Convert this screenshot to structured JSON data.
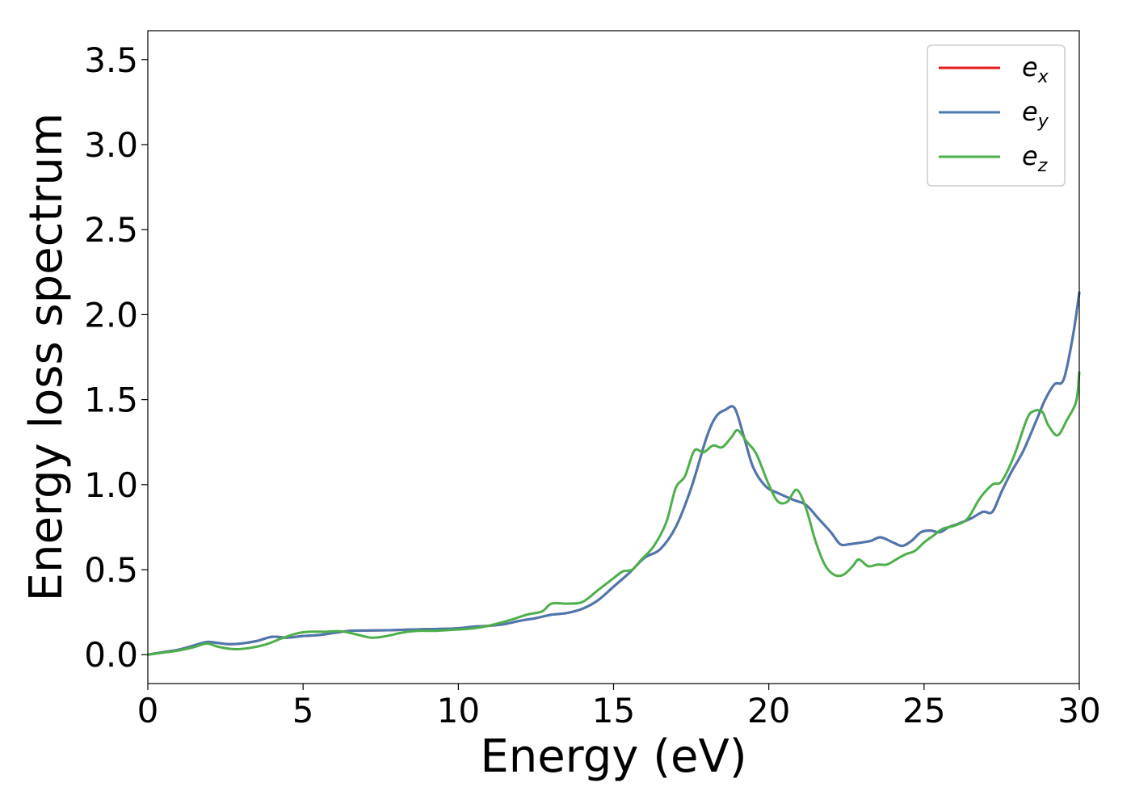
{
  "chart_data": {
    "type": "line",
    "title": "",
    "xlabel": "Energy (eV)",
    "ylabel": "Energy loss spectrum",
    "xlim": [
      0,
      30
    ],
    "ylim": [
      -0.17,
      3.67
    ],
    "xticks": [
      0,
      5,
      10,
      15,
      20,
      25,
      30
    ],
    "xtick_labels": [
      "0",
      "5",
      "10",
      "15",
      "20",
      "25",
      "30"
    ],
    "yticks": [
      0.0,
      0.5,
      1.0,
      1.5,
      2.0,
      2.5,
      3.0,
      3.5
    ],
    "ytick_labels": [
      "0.0",
      "0.5",
      "1.0",
      "1.5",
      "2.0",
      "2.5",
      "3.0",
      "3.5"
    ],
    "grid": false,
    "legend": {
      "placement": "top-right"
    },
    "series": [
      {
        "name": "e_x",
        "label_base": "e",
        "label_sub": "x",
        "color": "#e41a1c",
        "x": [
          0,
          0.5,
          1,
          1.5,
          1.9,
          2.2,
          2.6,
          3,
          3.5,
          4,
          4.5,
          5,
          5.5,
          6,
          6.5,
          7,
          7.5,
          8,
          8.5,
          9,
          9.5,
          10,
          10.5,
          11,
          11.5,
          12,
          12.5,
          13,
          13.5,
          14,
          14.5,
          15,
          15.5,
          16,
          16.5,
          17,
          17.5,
          18,
          18.3,
          18.6,
          18.9,
          19.2,
          19.5,
          19.9,
          20.3,
          20.8,
          21.2,
          21.6,
          22,
          22.3,
          22.6,
          23,
          23.3,
          23.6,
          24,
          24.3,
          24.6,
          24.9,
          25.2,
          25.5,
          25.8,
          26.1,
          26.5,
          26.9,
          27.2,
          27.5,
          27.8,
          28.2,
          28.6,
          28.9,
          29.2,
          29.5,
          29.8,
          30
        ],
        "y": [
          0.0,
          0.015,
          0.03,
          0.055,
          0.075,
          0.07,
          0.062,
          0.065,
          0.08,
          0.105,
          0.1,
          0.11,
          0.115,
          0.128,
          0.14,
          0.142,
          0.143,
          0.145,
          0.148,
          0.15,
          0.152,
          0.155,
          0.165,
          0.17,
          0.18,
          0.2,
          0.215,
          0.235,
          0.245,
          0.27,
          0.32,
          0.4,
          0.48,
          0.57,
          0.62,
          0.75,
          0.98,
          1.28,
          1.4,
          1.44,
          1.45,
          1.28,
          1.1,
          0.99,
          0.95,
          0.91,
          0.88,
          0.8,
          0.72,
          0.65,
          0.65,
          0.66,
          0.67,
          0.69,
          0.66,
          0.64,
          0.67,
          0.72,
          0.73,
          0.72,
          0.75,
          0.77,
          0.8,
          0.84,
          0.84,
          0.96,
          1.07,
          1.2,
          1.37,
          1.5,
          1.59,
          1.62,
          1.88,
          2.13
        ]
      },
      {
        "name": "e_y",
        "label_base": "e",
        "label_sub": "y",
        "color": "#4a78b0",
        "x": [
          0,
          0.5,
          1,
          1.5,
          1.9,
          2.2,
          2.6,
          3,
          3.5,
          4,
          4.5,
          5,
          5.5,
          6,
          6.5,
          7,
          7.5,
          8,
          8.5,
          9,
          9.5,
          10,
          10.5,
          11,
          11.5,
          12,
          12.5,
          13,
          13.5,
          14,
          14.5,
          15,
          15.5,
          16,
          16.5,
          17,
          17.5,
          18,
          18.3,
          18.6,
          18.9,
          19.2,
          19.5,
          19.9,
          20.3,
          20.8,
          21.2,
          21.6,
          22,
          22.3,
          22.6,
          23,
          23.3,
          23.6,
          24,
          24.3,
          24.6,
          24.9,
          25.2,
          25.5,
          25.8,
          26.1,
          26.5,
          26.9,
          27.2,
          27.5,
          27.8,
          28.2,
          28.6,
          28.9,
          29.2,
          29.5,
          29.8,
          30
        ],
        "y": [
          0.0,
          0.015,
          0.03,
          0.055,
          0.075,
          0.07,
          0.062,
          0.065,
          0.08,
          0.105,
          0.1,
          0.11,
          0.115,
          0.128,
          0.14,
          0.142,
          0.143,
          0.145,
          0.148,
          0.15,
          0.152,
          0.155,
          0.165,
          0.17,
          0.18,
          0.2,
          0.215,
          0.235,
          0.245,
          0.27,
          0.32,
          0.4,
          0.48,
          0.57,
          0.62,
          0.75,
          0.98,
          1.28,
          1.4,
          1.44,
          1.45,
          1.28,
          1.1,
          0.99,
          0.95,
          0.91,
          0.88,
          0.8,
          0.72,
          0.65,
          0.65,
          0.66,
          0.67,
          0.69,
          0.66,
          0.64,
          0.67,
          0.72,
          0.73,
          0.72,
          0.75,
          0.77,
          0.8,
          0.84,
          0.84,
          0.96,
          1.07,
          1.2,
          1.37,
          1.5,
          1.59,
          1.62,
          1.88,
          2.13
        ]
      },
      {
        "name": "e_z",
        "label_base": "e",
        "label_sub": "z",
        "color": "#4daf4a",
        "x": [
          0,
          0.5,
          1,
          1.5,
          1.9,
          2.3,
          2.8,
          3.3,
          3.8,
          4.3,
          4.8,
          5.2,
          5.7,
          6.2,
          6.7,
          7.2,
          7.7,
          8.2,
          8.7,
          9.2,
          9.7,
          10.2,
          10.7,
          11.2,
          11.7,
          12.2,
          12.7,
          13,
          13.5,
          14,
          14.5,
          15,
          15.3,
          15.6,
          15.9,
          16.3,
          16.7,
          17,
          17.3,
          17.6,
          17.9,
          18.2,
          18.5,
          18.8,
          19,
          19.3,
          19.6,
          20,
          20.3,
          20.6,
          20.9,
          21.2,
          21.5,
          21.8,
          22.1,
          22.4,
          22.7,
          22.9,
          23.2,
          23.5,
          23.8,
          24.1,
          24.4,
          24.7,
          25,
          25.3,
          25.6,
          26,
          26.4,
          26.8,
          27.2,
          27.5,
          27.9,
          28.3,
          28.5,
          28.8,
          29,
          29.3,
          29.6,
          29.9,
          30
        ],
        "y": [
          0.0,
          0.012,
          0.025,
          0.045,
          0.065,
          0.045,
          0.032,
          0.04,
          0.06,
          0.095,
          0.125,
          0.135,
          0.135,
          0.138,
          0.12,
          0.1,
          0.11,
          0.13,
          0.14,
          0.14,
          0.145,
          0.15,
          0.16,
          0.18,
          0.205,
          0.235,
          0.255,
          0.3,
          0.3,
          0.31,
          0.38,
          0.45,
          0.49,
          0.5,
          0.56,
          0.64,
          0.78,
          0.98,
          1.05,
          1.2,
          1.19,
          1.23,
          1.22,
          1.28,
          1.32,
          1.25,
          1.18,
          1.0,
          0.9,
          0.9,
          0.97,
          0.86,
          0.67,
          0.53,
          0.47,
          0.47,
          0.52,
          0.56,
          0.52,
          0.53,
          0.53,
          0.56,
          0.59,
          0.61,
          0.66,
          0.7,
          0.74,
          0.76,
          0.8,
          0.92,
          1.0,
          1.02,
          1.17,
          1.38,
          1.43,
          1.43,
          1.35,
          1.29,
          1.38,
          1.49,
          1.66
        ]
      }
    ]
  }
}
